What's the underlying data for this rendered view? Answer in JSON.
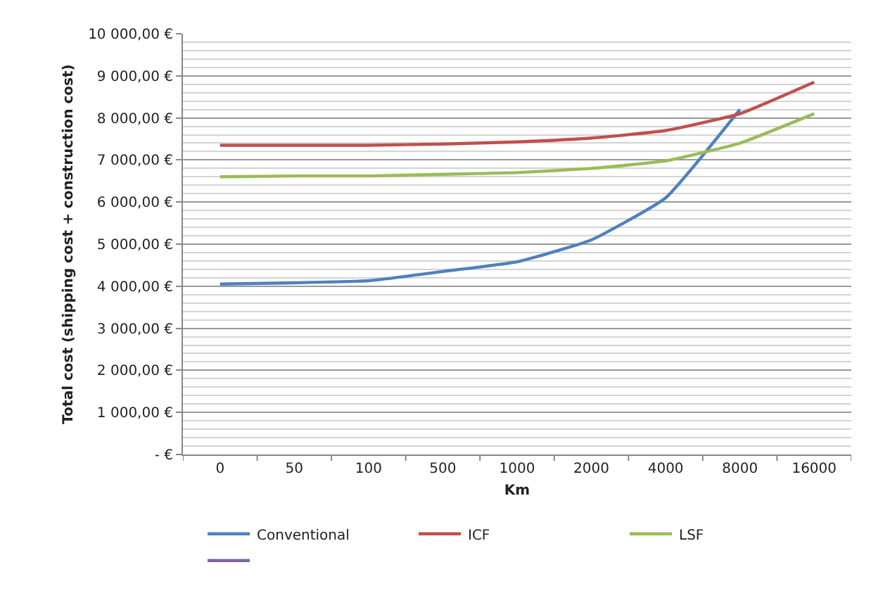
{
  "chart_data": {
    "type": "line",
    "xlabel": "Km",
    "ylabel": "Total cost (shipping cost + construction cost)",
    "categories": [
      "0",
      "50",
      "100",
      "500",
      "1000",
      "2000",
      "4000",
      "8000",
      "16000"
    ],
    "series": [
      {
        "name": "Conventional",
        "color": "#4f81bd",
        "values": [
          4050,
          4080,
          4130,
          4350,
          4580,
          5100,
          6100,
          8200,
          null
        ]
      },
      {
        "name": "ICF",
        "color": "#c0504d",
        "values": [
          7350,
          7350,
          7350,
          7380,
          7430,
          7520,
          7700,
          8100,
          8850
        ]
      },
      {
        "name": "LSF",
        "color": "#9bbb59",
        "values": [
          6600,
          6620,
          6620,
          6660,
          6700,
          6800,
          6980,
          7400,
          8100
        ]
      },
      {
        "color": "#8064a2",
        "values": [
          null,
          null,
          null,
          null,
          null,
          null,
          null,
          null,
          null
        ]
      }
    ],
    "ylim": [
      0,
      10000
    ],
    "yticks": [
      {
        "value": 0,
        "label": "- €"
      },
      {
        "value": 1000,
        "label": "1 000,00 €"
      },
      {
        "value": 2000,
        "label": "2 000,00 €"
      },
      {
        "value": 3000,
        "label": "3 000,00 €"
      },
      {
        "value": 4000,
        "label": "4 000,00 €"
      },
      {
        "value": 5000,
        "label": "5 000,00 €"
      },
      {
        "value": 6000,
        "label": "6 000,00 €"
      },
      {
        "value": 7000,
        "label": "7 000,00 €"
      },
      {
        "value": 8000,
        "label": "8 000,00 €"
      },
      {
        "value": 9000,
        "label": "9 000,00 €"
      },
      {
        "value": 10000,
        "label": "10 000,00 €"
      }
    ],
    "grid": "y",
    "legend": "bottom",
    "marker": "none",
    "line_style": "solid"
  }
}
